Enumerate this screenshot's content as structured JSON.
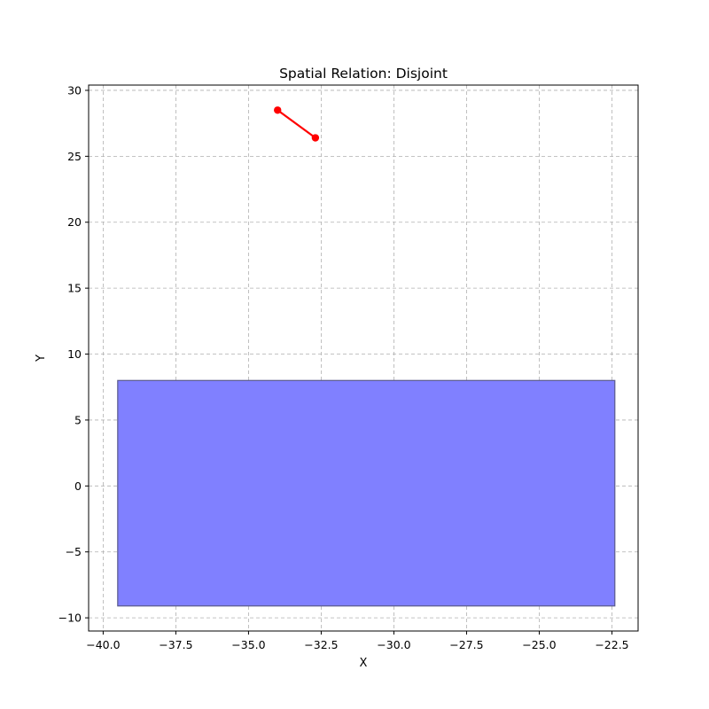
{
  "chart_data": {
    "type": "scatter",
    "title": "Spatial Relation: Disjoint",
    "xlabel": "X",
    "ylabel": "Y",
    "xlim": [
      -40.5,
      -21.6
    ],
    "ylim": [
      -11.0,
      30.4
    ],
    "xticks": [
      -40.0,
      -37.5,
      -35.0,
      -32.5,
      -30.0,
      -27.5,
      -25.0,
      -22.5
    ],
    "xtick_labels": [
      "−40.0",
      "−37.5",
      "−35.0",
      "−32.5",
      "−30.0",
      "−27.5",
      "−25.0",
      "−22.5"
    ],
    "yticks": [
      -10,
      -5,
      0,
      5,
      10,
      15,
      20,
      25,
      30
    ],
    "ytick_labels": [
      "−10",
      "−5",
      "0",
      "5",
      "10",
      "15",
      "20",
      "25",
      "30"
    ],
    "grid": true,
    "polygon": {
      "x0": -39.5,
      "x1": -22.4,
      "y0": -9.1,
      "y1": 8.0,
      "fill_color": "#8080ff",
      "edge_color": "#5a5a8c"
    },
    "line": {
      "points": [
        [
          -34.0,
          28.5
        ],
        [
          -32.7,
          26.4
        ]
      ],
      "color": "#ff0000"
    }
  }
}
